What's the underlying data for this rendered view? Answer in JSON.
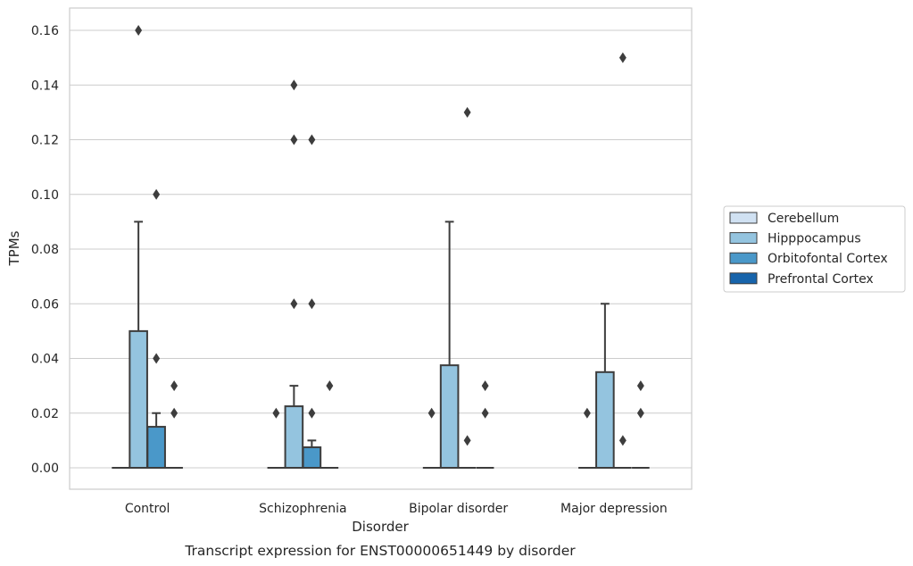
{
  "chart_data": {
    "type": "box",
    "caption": "Transcript expression for ENST00000651449 by disorder",
    "xlabel": "Disorder",
    "ylabel": "TPMs",
    "ylim": [
      -0.008,
      0.168
    ],
    "yticks": [
      "0.00",
      "0.02",
      "0.04",
      "0.06",
      "0.08",
      "0.10",
      "0.12",
      "0.14",
      "0.16"
    ],
    "grid": true,
    "legend_position": "right",
    "categories": [
      "Control",
      "Schizophrenia",
      "Bipolar disorder",
      "Major depression"
    ],
    "series": [
      {
        "name": "Cerebellum",
        "color": "#d0e1f2",
        "boxes": [
          {
            "q1": 0,
            "median": 0,
            "q3": 0,
            "whisker_low": 0,
            "whisker_high": 0,
            "outliers": []
          },
          {
            "q1": 0,
            "median": 0,
            "q3": 0,
            "whisker_low": 0,
            "whisker_high": 0,
            "outliers": [
              0.02
            ]
          },
          {
            "q1": 0,
            "median": 0,
            "q3": 0,
            "whisker_low": 0,
            "whisker_high": 0,
            "outliers": [
              0.02
            ]
          },
          {
            "q1": 0,
            "median": 0,
            "q3": 0,
            "whisker_low": 0,
            "whisker_high": 0,
            "outliers": [
              0.02
            ]
          }
        ]
      },
      {
        "name": "Hipppocampus",
        "color": "#94c4df",
        "boxes": [
          {
            "q1": 0,
            "median": 0,
            "q3": 0.05,
            "whisker_low": 0,
            "whisker_high": 0.09,
            "outliers": [
              0.16
            ]
          },
          {
            "q1": 0,
            "median": 0,
            "q3": 0.0225,
            "whisker_low": 0,
            "whisker_high": 0.03,
            "outliers": [
              0.06,
              0.12,
              0.14
            ]
          },
          {
            "q1": 0,
            "median": 0,
            "q3": 0.0375,
            "whisker_low": 0,
            "whisker_high": 0.09,
            "outliers": []
          },
          {
            "q1": 0,
            "median": 0,
            "q3": 0.035,
            "whisker_low": 0,
            "whisker_high": 0.06,
            "outliers": []
          }
        ]
      },
      {
        "name": "Orbitofontal Cortex",
        "color": "#4a98c9",
        "boxes": [
          {
            "q1": 0,
            "median": 0,
            "q3": 0.015,
            "whisker_low": 0,
            "whisker_high": 0.02,
            "outliers": [
              0.04,
              0.1
            ]
          },
          {
            "q1": 0,
            "median": 0,
            "q3": 0.0075,
            "whisker_low": 0,
            "whisker_high": 0.01,
            "outliers": [
              0.02,
              0.06,
              0.12
            ]
          },
          {
            "q1": 0,
            "median": 0,
            "q3": 0,
            "whisker_low": 0,
            "whisker_high": 0,
            "outliers": [
              0.01,
              0.13
            ]
          },
          {
            "q1": 0,
            "median": 0,
            "q3": 0,
            "whisker_low": 0,
            "whisker_high": 0,
            "outliers": [
              0.01,
              0.15
            ]
          }
        ]
      },
      {
        "name": "Prefrontal Cortex",
        "color": "#1764ab",
        "boxes": [
          {
            "q1": 0,
            "median": 0,
            "q3": 0,
            "whisker_low": 0,
            "whisker_high": 0,
            "outliers": [
              0.02,
              0.03
            ]
          },
          {
            "q1": 0,
            "median": 0,
            "q3": 0,
            "whisker_low": 0,
            "whisker_high": 0,
            "outliers": [
              0.03
            ]
          },
          {
            "q1": 0,
            "median": 0,
            "q3": 0,
            "whisker_low": 0,
            "whisker_high": 0,
            "outliers": [
              0.02,
              0.03
            ]
          },
          {
            "q1": 0,
            "median": 0,
            "q3": 0,
            "whisker_low": 0,
            "whisker_high": 0,
            "outliers": [
              0.02,
              0.03
            ]
          }
        ]
      }
    ]
  }
}
